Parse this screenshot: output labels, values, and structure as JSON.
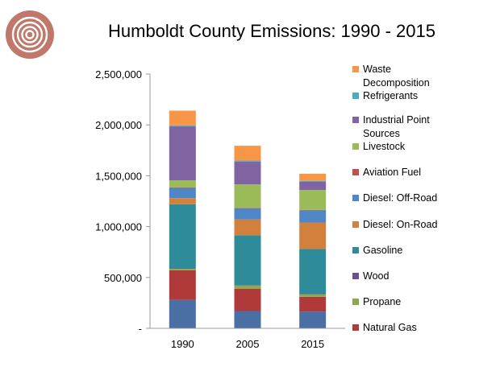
{
  "chart_data": {
    "type": "bar",
    "stacked": true,
    "title": "Humboldt County Emissions: 1990 - 2015",
    "categories": [
      "1990",
      "2005",
      "2015"
    ],
    "ylim": [
      0,
      2500000
    ],
    "yticks": [
      0,
      500000,
      1000000,
      1500000,
      2000000,
      2500000
    ],
    "ytick_labels": [
      "-",
      "500,000",
      "1,000,000",
      "1,500,000",
      "2,000,000",
      "2,500,000"
    ],
    "grid": false,
    "legend_position": "right",
    "series": [
      {
        "name": "",
        "color": "#4a6fa5",
        "values": [
          280000,
          170000,
          165000
        ]
      },
      {
        "name": "Natural Gas",
        "color": "#b03a3a",
        "values": [
          290000,
          220000,
          145000
        ]
      },
      {
        "name": "Propane",
        "color": "#8aab4a",
        "values": [
          15000,
          30000,
          25000
        ]
      },
      {
        "name": "Wood",
        "color": "#6b4f8a",
        "values": [
          5000,
          5000,
          5000
        ]
      },
      {
        "name": "Gasoline",
        "color": "#2e8b9a",
        "values": [
          630000,
          490000,
          440000
        ]
      },
      {
        "name": "Diesel: On-Road",
        "color": "#d2813c",
        "values": [
          60000,
          155000,
          260000
        ]
      },
      {
        "name": "Diesel: Off-Road",
        "color": "#4f86c6",
        "values": [
          100000,
          110000,
          120000
        ]
      },
      {
        "name": "Aviation Fuel",
        "color": "#c0504d",
        "values": [
          5000,
          5000,
          5000
        ]
      },
      {
        "name": "Livestock",
        "color": "#9bbb59",
        "values": [
          70000,
          230000,
          195000
        ]
      },
      {
        "name": "Industrial Point Sources",
        "color": "#8064a2",
        "values": [
          530000,
          225000,
          80000
        ]
      },
      {
        "name": "Refrigerants",
        "color": "#4bacc6",
        "values": [
          10000,
          10000,
          10000
        ]
      },
      {
        "name": "Waste Decomposition",
        "color": "#f79646",
        "values": [
          145000,
          145000,
          70000
        ]
      }
    ],
    "legend": [
      {
        "lines": [
          "Waste",
          "Decomposition"
        ],
        "color": "#f79646"
      },
      {
        "lines": [
          "Refrigerants"
        ],
        "color": "#4bacc6"
      },
      {
        "lines": [
          "Industrial Point",
          "Sources"
        ],
        "color": "#8064a2"
      },
      {
        "lines": [
          "Livestock"
        ],
        "color": "#9bbb59"
      },
      {
        "lines": [
          "Aviation Fuel"
        ],
        "color": "#c0504d"
      },
      {
        "lines": [
          "Diesel: Off-Road"
        ],
        "color": "#4f86c6"
      },
      {
        "lines": [
          "Diesel: On-Road"
        ],
        "color": "#d2813c"
      },
      {
        "lines": [
          "Gasoline"
        ],
        "color": "#2e8b9a"
      },
      {
        "lines": [
          "Wood"
        ],
        "color": "#6b4f8a"
      },
      {
        "lines": [
          "Propane"
        ],
        "color": "#8aab4a"
      },
      {
        "lines": [
          "Natural Gas"
        ],
        "color": "#b03a3a"
      }
    ]
  },
  "logo": {
    "icon": "concentric-circles-logo-icon",
    "color": "#c0786a"
  }
}
